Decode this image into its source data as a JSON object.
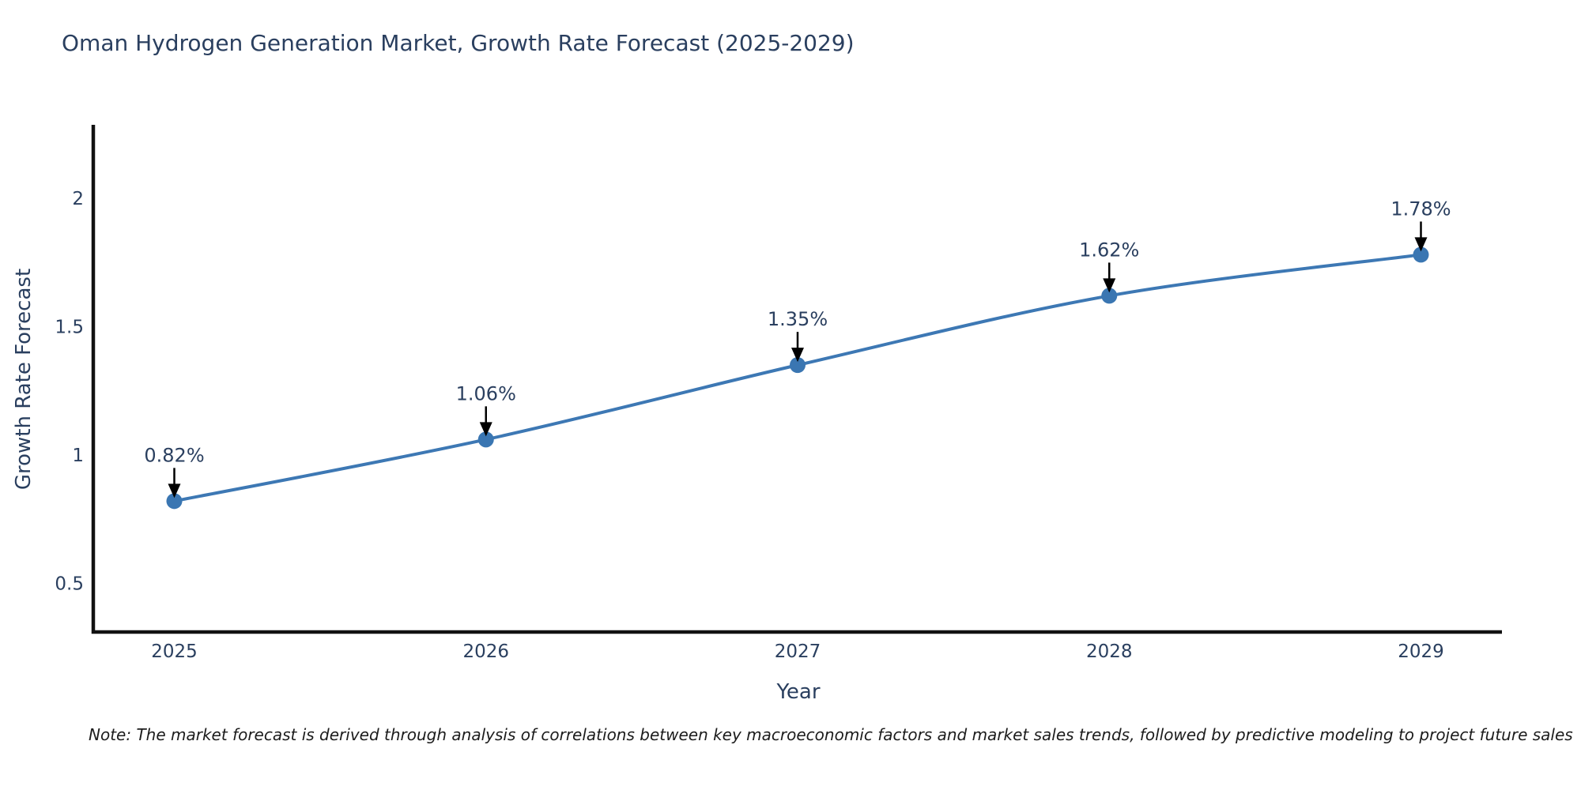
{
  "chart_data": {
    "type": "line",
    "title": "Oman Hydrogen Generation Market, Growth Rate Forecast (2025-2029)",
    "xlabel": "Year",
    "ylabel": "Growth Rate Forecast",
    "x": [
      2025,
      2026,
      2027,
      2028,
      2029
    ],
    "x_tick_labels": [
      "2025",
      "2026",
      "2027",
      "2028",
      "2029"
    ],
    "values": [
      0.82,
      1.06,
      1.35,
      1.62,
      1.78
    ],
    "annotations": [
      "0.82%",
      "1.06%",
      "1.35%",
      "1.62%",
      "1.78%"
    ],
    "y_ticks": [
      0.5,
      1,
      1.5,
      2
    ],
    "y_tick_labels": [
      "0.5",
      "1",
      "1.5",
      "2"
    ],
    "xlim": [
      2024.74,
      2029.26
    ],
    "ylim": [
      0.31,
      2.28
    ],
    "grid": false,
    "legend": "none",
    "line_shape": "spline",
    "line_color": "#3d78b4",
    "marker_color": "#3a76b2",
    "arrow_color": "#000000",
    "axis_color": "#111111"
  },
  "note": "Note: The market forecast is derived through analysis of correlations between key macroeconomic factors and market sales trends, followed by predictive modeling to project future sales"
}
